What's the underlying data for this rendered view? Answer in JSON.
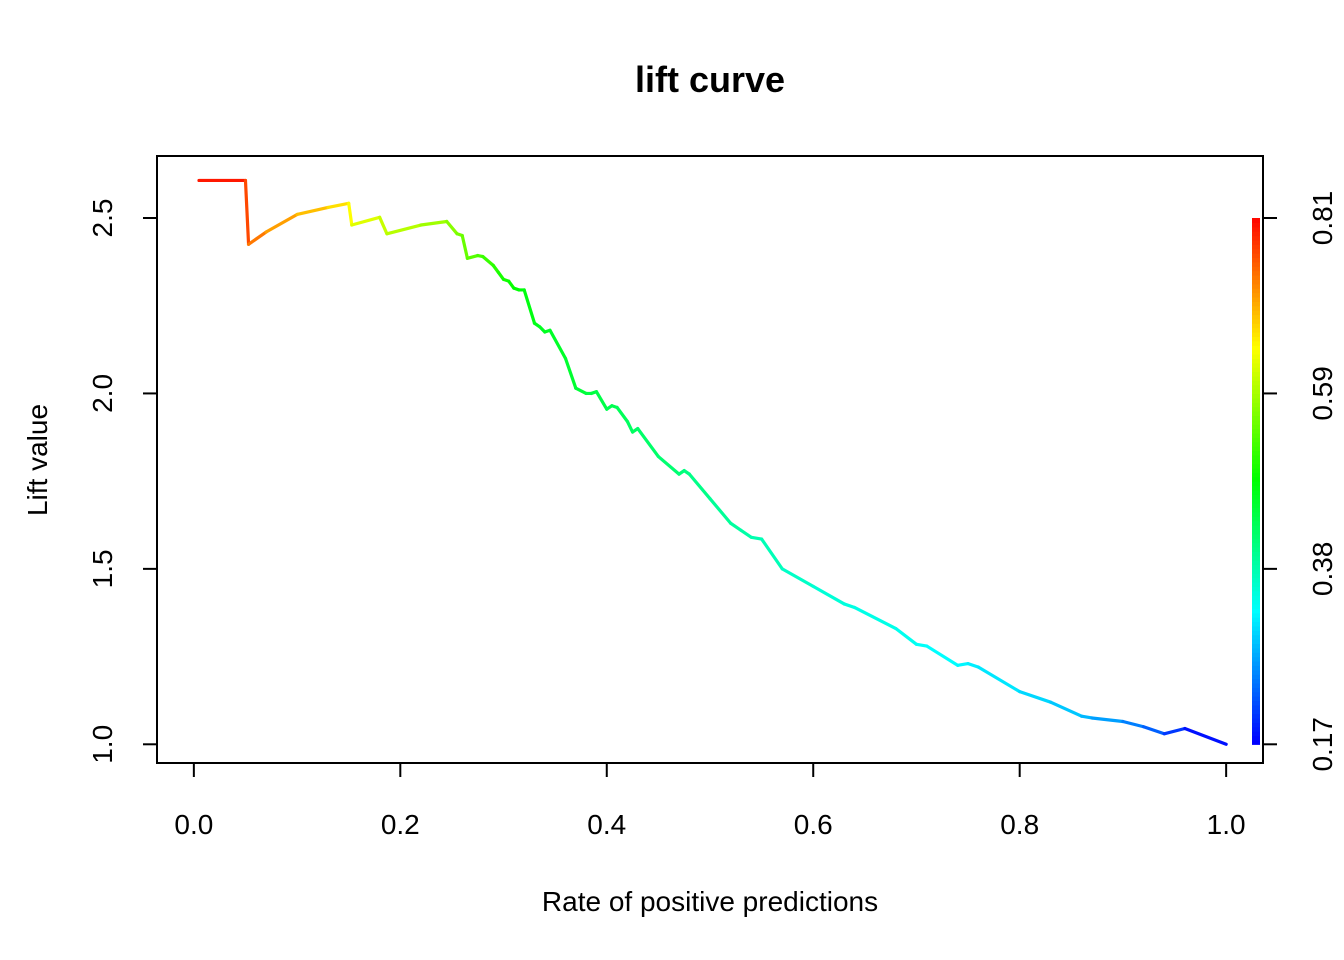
{
  "chart_data": {
    "type": "line",
    "title": "lift curve",
    "xlabel": "Rate of positive predictions",
    "ylabel": "Lift value",
    "xlim": [
      -0.0357,
      1.0357
    ],
    "ylim": [
      0.9467,
      2.6767
    ],
    "x_ticks": [
      0.0,
      0.2,
      0.4,
      0.6,
      0.8,
      1.0
    ],
    "x_tick_labels": [
      "0.0",
      "0.2",
      "0.4",
      "0.6",
      "0.8",
      "1.0"
    ],
    "y_ticks": [
      1.0,
      1.5,
      2.0,
      2.5
    ],
    "y_tick_labels": [
      "1.0",
      "1.5",
      "2.0",
      "2.5"
    ],
    "colorbar": {
      "label_values": [
        0.17,
        0.38,
        0.59,
        0.81
      ],
      "tick_labels": [
        "0.17",
        "0.38",
        "0.59",
        "0.81"
      ],
      "range": [
        0.17,
        0.81
      ],
      "colors": [
        "#0000ff",
        "#00ffff",
        "#00ff00",
        "#ffff00",
        "#ff0000"
      ]
    },
    "series": [
      {
        "x": [
          0.005,
          0.05,
          0.053,
          0.07,
          0.1,
          0.13,
          0.15,
          0.153,
          0.18,
          0.187,
          0.22,
          0.245,
          0.255,
          0.26,
          0.265,
          0.275,
          0.28,
          0.29,
          0.295,
          0.3,
          0.305,
          0.31,
          0.315,
          0.32,
          0.33,
          0.335,
          0.34,
          0.345,
          0.36,
          0.37,
          0.38,
          0.385,
          0.39,
          0.4,
          0.405,
          0.41,
          0.42,
          0.425,
          0.43,
          0.45,
          0.47,
          0.475,
          0.48,
          0.5,
          0.52,
          0.53,
          0.54,
          0.55,
          0.57,
          0.6,
          0.63,
          0.64,
          0.68,
          0.7,
          0.71,
          0.74,
          0.75,
          0.76,
          0.8,
          0.83,
          0.86,
          0.87,
          0.9,
          0.92,
          0.94,
          0.96,
          1.0
        ],
        "y": [
          2.607,
          2.607,
          2.425,
          2.46,
          2.51,
          2.53,
          2.542,
          2.48,
          2.502,
          2.455,
          2.48,
          2.49,
          2.455,
          2.45,
          2.385,
          2.393,
          2.39,
          2.365,
          2.345,
          2.325,
          2.32,
          2.3,
          2.295,
          2.295,
          2.2,
          2.19,
          2.175,
          2.18,
          2.1,
          2.015,
          2.0,
          2.0,
          2.005,
          1.955,
          1.965,
          1.96,
          1.92,
          1.89,
          1.9,
          1.82,
          1.77,
          1.78,
          1.77,
          1.7,
          1.63,
          1.61,
          1.59,
          1.585,
          1.5,
          1.45,
          1.4,
          1.39,
          1.33,
          1.285,
          1.28,
          1.225,
          1.23,
          1.22,
          1.15,
          1.12,
          1.08,
          1.075,
          1.065,
          1.05,
          1.03,
          1.045,
          1.0
        ],
        "cutoff": [
          0.81,
          0.78,
          0.75,
          0.72,
          0.7,
          0.68,
          0.66,
          0.64,
          0.62,
          0.61,
          0.6,
          0.58,
          0.57,
          0.56,
          0.55,
          0.54,
          0.53,
          0.52,
          0.51,
          0.5,
          0.5,
          0.49,
          0.49,
          0.48,
          0.48,
          0.47,
          0.47,
          0.47,
          0.46,
          0.46,
          0.45,
          0.45,
          0.45,
          0.44,
          0.44,
          0.44,
          0.43,
          0.43,
          0.43,
          0.42,
          0.42,
          0.41,
          0.41,
          0.4,
          0.39,
          0.39,
          0.38,
          0.38,
          0.37,
          0.36,
          0.35,
          0.35,
          0.34,
          0.34,
          0.33,
          0.33,
          0.32,
          0.32,
          0.31,
          0.3,
          0.29,
          0.28,
          0.26,
          0.24,
          0.22,
          0.19,
          0.17
        ]
      }
    ]
  }
}
